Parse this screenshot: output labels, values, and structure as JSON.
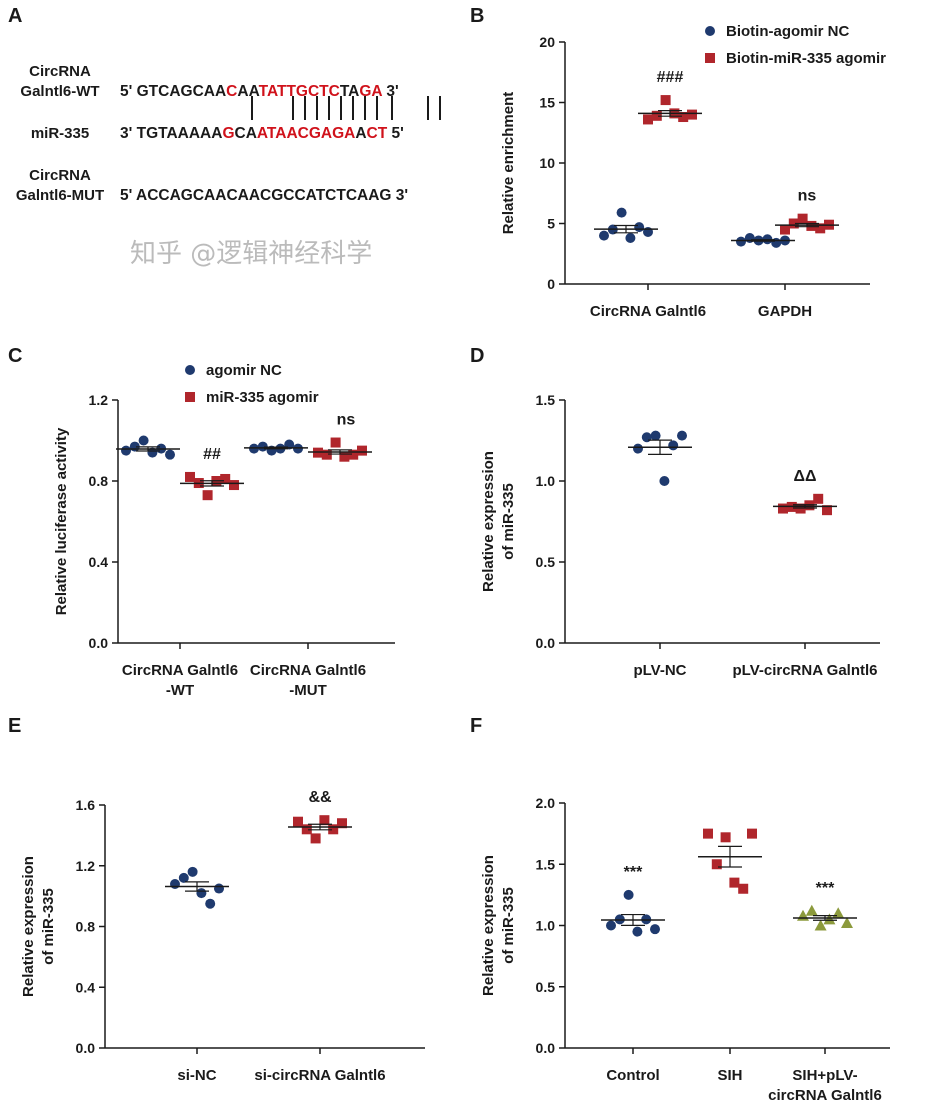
{
  "panel_letters": [
    "A",
    "B",
    "C",
    "D",
    "E",
    "F"
  ],
  "panel_a": {
    "rows": [
      {
        "label": [
          "CircRNA",
          "Galntl6-WT"
        ],
        "seq": [
          [
            "5' GTCAGCAA",
            "k"
          ],
          [
            "C",
            "r"
          ],
          [
            "AA",
            "k"
          ],
          [
            "TATTGCTC",
            "r"
          ],
          [
            "TA",
            "k"
          ],
          [
            "GA",
            "r"
          ],
          [
            " 3'",
            "k"
          ]
        ]
      },
      {
        "label": [
          "miR-335"
        ],
        "seq": [
          [
            "3' TGTAAAAA",
            "k"
          ],
          [
            "G",
            "r"
          ],
          [
            "CA",
            "k"
          ],
          [
            "ATAACGAGA",
            "r"
          ],
          [
            "A",
            "k"
          ],
          [
            "CT",
            "r"
          ],
          [
            " 5'",
            "k"
          ]
        ]
      },
      {
        "label": [
          "CircRNA",
          "Galntl6-MUT"
        ],
        "seq": [
          [
            "5' ACCAGCAACAACGCCATCTCAAG 3'",
            "k"
          ]
        ]
      }
    ],
    "colors": {
      "k": "#1a1a1a",
      "r": "#d0121b"
    }
  },
  "watermark": "知乎 @逻辑神经科学",
  "chart_data": [
    {
      "panel": "B",
      "type": "scatter",
      "ylabel": [
        "Relative enrichment"
      ],
      "ylim": [
        0,
        20
      ],
      "yticks": [
        "0",
        "5",
        "10",
        "15",
        "20"
      ],
      "categories": [
        [
          "CircRNA Galntl6"
        ],
        [
          "GAPDH"
        ]
      ],
      "legend": "top-right",
      "series": [
        {
          "name": "Biotin-agomir NC",
          "marker": "circle",
          "color": "#1f3a6e",
          "values": [
            [
              4.0,
              4.5,
              5.9,
              3.8,
              4.7,
              4.3
            ],
            [
              3.5,
              3.8,
              3.6,
              3.7,
              3.4,
              3.6
            ]
          ]
        },
        {
          "name": "Biotin-miR-335 agomir",
          "marker": "square",
          "color": "#b0262c",
          "values": [
            [
              13.6,
              13.9,
              15.2,
              14.1,
              13.8,
              14.0
            ],
            [
              4.5,
              5.0,
              5.4,
              4.8,
              4.6,
              4.9
            ]
          ]
        }
      ],
      "annotations": [
        {
          "category": 0,
          "series": 1,
          "text": "###"
        },
        {
          "category": 1,
          "series": 1,
          "text": "ns"
        }
      ]
    },
    {
      "panel": "C",
      "type": "scatter",
      "ylabel": [
        "Relative luciferase activity"
      ],
      "ylim": [
        0,
        1.2
      ],
      "yticks": [
        "0.0",
        "0.4",
        "0.8",
        "1.2"
      ],
      "categories": [
        [
          "CircRNA Galntl6",
          "-WT"
        ],
        [
          "CircRNA Galntl6",
          "-MUT"
        ]
      ],
      "legend": "top-center",
      "series": [
        {
          "name": "agomir NC",
          "marker": "circle",
          "color": "#1f3a6e",
          "values": [
            [
              0.95,
              0.97,
              1.0,
              0.94,
              0.96,
              0.93
            ],
            [
              0.96,
              0.97,
              0.95,
              0.96,
              0.98,
              0.96
            ]
          ]
        },
        {
          "name": "miR-335 agomir",
          "marker": "square",
          "color": "#b0262c",
          "values": [
            [
              0.82,
              0.79,
              0.73,
              0.8,
              0.81,
              0.78
            ],
            [
              0.94,
              0.93,
              0.99,
              0.92,
              0.93,
              0.95
            ]
          ]
        }
      ],
      "annotations": [
        {
          "category": 0,
          "series": 1,
          "text": "##"
        },
        {
          "category": 1,
          "series": 1,
          "text": "ns"
        }
      ]
    },
    {
      "panel": "D",
      "type": "scatter",
      "ylabel": [
        "Relative expression",
        "of miR-335"
      ],
      "ylim": [
        0,
        1.5
      ],
      "yticks": [
        "0.0",
        "0.5",
        "1.0",
        "1.5"
      ],
      "categories": [
        [
          "pLV-NC"
        ],
        [
          "pLV-circRNA Galntl6"
        ]
      ],
      "series": [
        {
          "marker": "circle",
          "color": "#1f3a6e",
          "values": [
            [
              1.2,
              1.27,
              1.28,
              1.0,
              1.22,
              1.28
            ],
            null
          ]
        },
        {
          "marker": "square",
          "color": "#b0262c",
          "values": [
            null,
            [
              0.83,
              0.84,
              0.83,
              0.85,
              0.89,
              0.82
            ]
          ]
        }
      ],
      "annotations": [
        {
          "category": 1,
          "series": 1,
          "text": "ΔΔ"
        }
      ]
    },
    {
      "panel": "E",
      "type": "scatter",
      "ylabel": [
        "Relative expression",
        "of miR-335"
      ],
      "ylim": [
        0,
        1.6
      ],
      "yticks": [
        "0.0",
        "0.4",
        "0.8",
        "1.2",
        "1.6"
      ],
      "categories": [
        [
          "si-NC"
        ],
        [
          "si-circRNA Galntl6"
        ]
      ],
      "series": [
        {
          "marker": "circle",
          "color": "#1f3a6e",
          "values": [
            [
              1.08,
              1.12,
              1.16,
              1.02,
              0.95,
              1.05
            ],
            null
          ]
        },
        {
          "marker": "square",
          "color": "#b0262c",
          "values": [
            null,
            [
              1.49,
              1.44,
              1.38,
              1.5,
              1.44,
              1.48
            ]
          ]
        }
      ],
      "annotations": [
        {
          "category": 1,
          "series": 1,
          "text": "&&"
        }
      ]
    },
    {
      "panel": "F",
      "type": "scatter",
      "ylabel": [
        "Relative expression",
        "of miR-335"
      ],
      "ylim": [
        0,
        2.0
      ],
      "yticks": [
        "0.0",
        "0.5",
        "1.0",
        "1.5",
        "2.0"
      ],
      "categories": [
        [
          "Control"
        ],
        [
          "SIH"
        ],
        [
          "SIH+pLV-",
          "circRNA Galntl6"
        ]
      ],
      "series": [
        {
          "marker": "circle",
          "color": "#1f3a6e",
          "values": [
            [
              1.0,
              1.05,
              1.25,
              0.95,
              1.05,
              0.97
            ],
            null,
            null
          ]
        },
        {
          "marker": "square",
          "color": "#b0262c",
          "values": [
            null,
            [
              1.75,
              1.5,
              1.72,
              1.35,
              1.3,
              1.75
            ],
            null
          ]
        },
        {
          "marker": "triangle",
          "color": "#8c9a3c",
          "values": [
            null,
            null,
            [
              1.08,
              1.12,
              1.0,
              1.05,
              1.1,
              1.02
            ]
          ]
        }
      ],
      "annotations": [
        {
          "category": 0,
          "series": 0,
          "text": "***"
        },
        {
          "category": 2,
          "series": 2,
          "text": "***"
        }
      ]
    }
  ]
}
